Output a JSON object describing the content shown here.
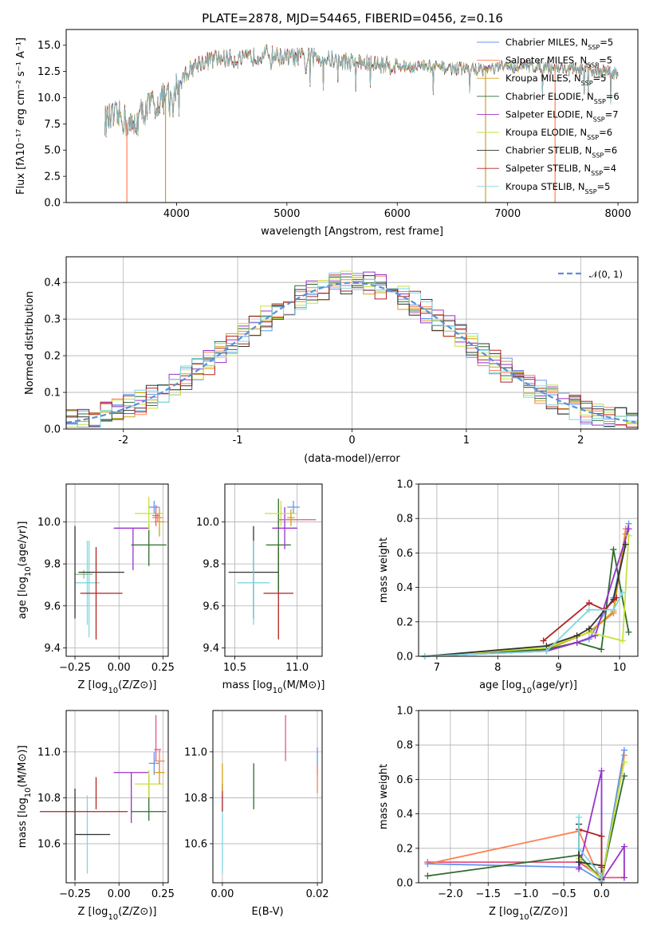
{
  "figure_title": "PLATE=2878, MJD=54465, FIBERID=0456, z=0.16",
  "chart_data": [
    {
      "id": "spectrum",
      "type": "line",
      "title": "PLATE=2878, MJD=54465, FIBERID=0456, z=0.16",
      "xlabel": "wavelength [Angstrom, rest frame]",
      "ylabel": "Flux [fλ10⁻¹⁷ erg cm⁻² s⁻¹ A⁻¹]",
      "xlim": [
        3000,
        8180
      ],
      "ylim": [
        0,
        16.5
      ],
      "xticks": [
        4000,
        5000,
        6000,
        7000,
        8000
      ],
      "yticks": [
        0.0,
        2.5,
        5.0,
        7.5,
        10.0,
        12.5,
        15.0
      ],
      "legend_position": "upper-right",
      "continuum_x": [
        3350,
        3500,
        3600,
        3700,
        3800,
        3900,
        4000,
        4100,
        4200,
        4400,
        4600,
        4800,
        5000,
        5200,
        5500,
        5800,
        6000,
        6200,
        6500,
        6800,
        7000,
        7300,
        7600,
        7900,
        8000
      ],
      "continuum_y": [
        7.8,
        8.2,
        7.0,
        8.8,
        9.5,
        10.0,
        11.0,
        12.5,
        13.3,
        13.8,
        13.6,
        14.2,
        13.8,
        13.9,
        13.5,
        13.2,
        13.0,
        13.0,
        12.8,
        12.7,
        13.0,
        13.0,
        12.7,
        12.5,
        12.3
      ],
      "series": [
        {
          "name": "Chabrier MILES, N$_{SSP}$=5",
          "label": "Chabrier MILES, N",
          "sub": "SSP",
          "suffix": "=5",
          "color": "#6495ed"
        },
        {
          "name": "Salpeter MILES, N$_{SSP}$=5",
          "label": "Salpeter MILES, N",
          "sub": "SSP",
          "suffix": "=5",
          "color": "#ff7f50"
        },
        {
          "name": "Kroupa MILES, N$_{SSP}$=5",
          "label": "Kroupa MILES, N",
          "sub": "SSP",
          "suffix": "=5",
          "color": "#d4a017"
        },
        {
          "name": "Chabrier ELODIE, N$_{SSP}$=6",
          "label": "Chabrier ELODIE, N",
          "sub": "SSP",
          "suffix": "=6",
          "color": "#2e6b2e"
        },
        {
          "name": "Salpeter ELODIE, N$_{SSP}$=7",
          "label": "Salpeter ELODIE, N",
          "sub": "SSP",
          "suffix": "=7",
          "color": "#9932cc"
        },
        {
          "name": "Kroupa ELODIE, N$_{SSP}$=6",
          "label": "Kroupa ELODIE, N",
          "sub": "SSP",
          "suffix": "=6",
          "color": "#c7e23a"
        },
        {
          "name": "Chabrier STELIB, N$_{SSP}$=6",
          "label": "Chabrier STELIB, N",
          "sub": "SSP",
          "suffix": "=6",
          "color": "#333333"
        },
        {
          "name": "Salpeter STELIB, N$_{SSP}$=4",
          "label": "Salpeter STELIB, N",
          "sub": "SSP",
          "suffix": "=4",
          "color": "#b22222"
        },
        {
          "name": "Kroupa STELIB, N$_{SSP}$=5",
          "label": "Kroupa STELIB, N",
          "sub": "SSP",
          "suffix": "=5",
          "color": "#7fd6e0"
        }
      ],
      "line_drops": [
        {
          "x": 3550,
          "color": "#ff7f50"
        },
        {
          "x": 3900,
          "color": "#d4a017"
        },
        {
          "x": 6800,
          "color": "#d4a017"
        },
        {
          "x": 7430,
          "color": "#ff7f50"
        }
      ]
    },
    {
      "id": "residuals",
      "type": "histogram",
      "xlabel": "(data-model)/error",
      "ylabel": "Normed distribution",
      "xlim": [
        -2.5,
        2.5
      ],
      "ylim": [
        0,
        0.47
      ],
      "xticks": [
        -2,
        -1,
        0,
        1,
        2
      ],
      "yticks": [
        0.0,
        0.1,
        0.2,
        0.3,
        0.4
      ],
      "bin_width": 0.1,
      "reference_curve": {
        "name": "N(0,1)",
        "label": "𝒩(0, 1)",
        "mean": 0,
        "sigma": 1,
        "color": "#5b8fd9",
        "style": "dashed"
      },
      "legend_position": "upper-right"
    },
    {
      "id": "age-vs-Z",
      "type": "errorbar",
      "xlabel_main": "Z [log",
      "xlabel_sub": "10",
      "xlabel_tail": "(Z/Z⊙)]",
      "ylabel_main": "age  [log",
      "ylabel_sub": "10",
      "ylabel_tail": "(age/yr)]",
      "xlim": [
        -0.3,
        0.28
      ],
      "ylim": [
        9.36,
        10.18
      ],
      "xticks": [
        -0.25,
        0.0,
        0.25
      ],
      "xticklabels": [
        "−0.25",
        "0.00",
        "0.25"
      ],
      "yticks": [
        9.4,
        9.6,
        9.8,
        10.0
      ],
      "points": [
        {
          "x": -0.18,
          "y": 9.71,
          "xerr": 0.07,
          "yerr": 0.2,
          "color": "#7fd6e0"
        },
        {
          "x": -0.2,
          "y": 9.75,
          "xerr": 0.05,
          "yerr": 0.02,
          "color": "#8fbc8f"
        },
        {
          "x": -0.25,
          "y": 9.76,
          "xerr": 0.0,
          "yerr": 0.22,
          "color": "#333333"
        },
        {
          "x": -0.17,
          "y": 9.68,
          "xerr": 0.0,
          "yerr": 0.23,
          "color": "#7fd6e0"
        },
        {
          "x": -0.1,
          "y": 9.76,
          "xerr": 0.13,
          "yerr": 0.0,
          "color": "#333333"
        },
        {
          "x": -0.1,
          "y": 9.66,
          "xerr": 0.12,
          "yerr": 0.0,
          "color": "#b22222"
        },
        {
          "x": -0.13,
          "y": 9.66,
          "xerr": 0.0,
          "yerr": 0.22,
          "color": "#b22222"
        },
        {
          "x": 0.07,
          "y": 9.97,
          "xerr": 0.1,
          "yerr": 0.0,
          "color": "#9932cc"
        },
        {
          "x": 0.08,
          "y": 9.87,
          "xerr": 0.0,
          "yerr": 0.1,
          "color": "#9932cc"
        },
        {
          "x": 0.17,
          "y": 9.89,
          "xerr": 0.1,
          "yerr": 0.0,
          "color": "#2e6b2e"
        },
        {
          "x": 0.17,
          "y": 9.89,
          "xerr": 0.0,
          "yerr": 0.1,
          "color": "#2e6b2e"
        },
        {
          "x": 0.17,
          "y": 10.04,
          "xerr": 0.08,
          "yerr": 0.08,
          "color": "#c7e23a"
        },
        {
          "x": 0.2,
          "y": 10.07,
          "xerr": 0.03,
          "yerr": 0.03,
          "color": "#6495ed"
        },
        {
          "x": 0.22,
          "y": 10.02,
          "xerr": 0.03,
          "yerr": 0.02,
          "color": "#ff7f50"
        },
        {
          "x": 0.23,
          "y": 10.0,
          "xerr": 0.03,
          "yerr": 0.07,
          "color": "#d4a017"
        },
        {
          "x": 0.21,
          "y": 10.03,
          "xerr": 0.02,
          "yerr": 0.05,
          "color": "#e75480"
        }
      ]
    },
    {
      "id": "age-vs-mass",
      "type": "errorbar",
      "xlabel_main": "mass [log",
      "xlabel_sub": "10",
      "xlabel_tail": "(M/M⊙)]",
      "xlim": [
        10.42,
        11.2
      ],
      "ylim": [
        9.36,
        10.18
      ],
      "xticks": [
        10.5,
        11.0
      ],
      "xticklabels": [
        "10.5",
        "11.0"
      ],
      "yticks": [
        9.4,
        9.6,
        9.8,
        10.0
      ],
      "points": [
        {
          "x": 10.65,
          "y": 9.76,
          "xerr": 0.2,
          "yerr": 0.22,
          "color": "#333333"
        },
        {
          "x": 10.65,
          "y": 9.71,
          "xerr": 0.13,
          "yerr": 0.2,
          "color": "#7fd6e0"
        },
        {
          "x": 10.85,
          "y": 9.66,
          "xerr": 0.12,
          "yerr": 0.22,
          "color": "#b22222"
        },
        {
          "x": 10.85,
          "y": 9.89,
          "xerr": 0.1,
          "yerr": 0.22,
          "color": "#2e6b2e"
        },
        {
          "x": 10.9,
          "y": 9.97,
          "xerr": 0.1,
          "yerr": 0.1,
          "color": "#9932cc"
        },
        {
          "x": 10.87,
          "y": 10.04,
          "xerr": 0.13,
          "yerr": 0.06,
          "color": "#c7e23a"
        },
        {
          "x": 10.97,
          "y": 10.07,
          "xerr": 0.05,
          "yerr": 0.03,
          "color": "#6495ed"
        },
        {
          "x": 11.0,
          "y": 10.01,
          "xerr": 0.15,
          "yerr": 0.0,
          "color": "#e75480"
        },
        {
          "x": 10.95,
          "y": 10.02,
          "xerr": 0.03,
          "yerr": 0.04,
          "color": "#d4a017"
        }
      ]
    },
    {
      "id": "weight-vs-age",
      "type": "line",
      "xlabel_main": "age  [log",
      "xlabel_sub": "10",
      "xlabel_tail": "(age/yr)]",
      "ylabel": "mass weight",
      "xlim": [
        6.7,
        10.3
      ],
      "ylim": [
        0,
        1.0
      ],
      "xticks": [
        7,
        8,
        9,
        10
      ],
      "yticks": [
        0.0,
        0.2,
        0.4,
        0.6,
        0.8,
        1.0
      ],
      "series": [
        {
          "color": "#6495ed",
          "x": [
            6.8,
            8.8,
            9.5,
            9.9,
            10.15
          ],
          "y": [
            0.0,
            0.03,
            0.1,
            0.34,
            0.77
          ]
        },
        {
          "color": "#ff7f50",
          "x": [
            6.8,
            8.8,
            9.5,
            9.9,
            10.1
          ],
          "y": [
            0.0,
            0.04,
            0.14,
            0.25,
            0.74
          ]
        },
        {
          "color": "#d4a017",
          "x": [
            6.8,
            8.8,
            9.5,
            9.9,
            10.1
          ],
          "y": [
            0.0,
            0.04,
            0.14,
            0.26,
            0.71
          ]
        },
        {
          "color": "#2e6b2e",
          "x": [
            6.8,
            8.8,
            9.3,
            9.7,
            9.9,
            10.15
          ],
          "y": [
            0.0,
            0.04,
            0.08,
            0.04,
            0.62,
            0.14
          ]
        },
        {
          "color": "#9932cc",
          "x": [
            6.8,
            8.8,
            9.3,
            9.6,
            10.15
          ],
          "y": [
            0.0,
            0.03,
            0.08,
            0.12,
            0.74
          ]
        },
        {
          "color": "#c7e23a",
          "x": [
            6.8,
            8.8,
            9.5,
            10.05,
            10.15
          ],
          "y": [
            0.0,
            0.05,
            0.14,
            0.09,
            0.7
          ]
        },
        {
          "color": "#333333",
          "x": [
            6.8,
            8.8,
            9.3,
            9.5,
            9.9,
            10.1
          ],
          "y": [
            0.0,
            0.06,
            0.12,
            0.16,
            0.33,
            0.65
          ]
        },
        {
          "color": "#b22222",
          "x": [
            8.75,
            9.5,
            9.75,
            9.95
          ],
          "y": [
            0.09,
            0.31,
            0.27,
            0.34
          ]
        },
        {
          "color": "#7fd6e0",
          "x": [
            6.8,
            8.8,
            9.5,
            9.9,
            10.05
          ],
          "y": [
            0.0,
            0.03,
            0.27,
            0.27,
            0.37
          ]
        }
      ]
    },
    {
      "id": "mass-vs-Z",
      "type": "errorbar",
      "xlabel_main": "Z [log",
      "xlabel_sub": "10",
      "xlabel_tail": "(Z/Z⊙)]",
      "ylabel_main": "mass [log",
      "ylabel_sub": "10",
      "ylabel_tail": "(M/M⊙)]",
      "xlim": [
        -0.3,
        0.28
      ],
      "ylim": [
        10.43,
        11.18
      ],
      "xticks": [
        -0.25,
        0.0,
        0.25
      ],
      "xticklabels": [
        "−0.25",
        "0.00",
        "0.25"
      ],
      "yticks": [
        10.6,
        10.8,
        11.0
      ],
      "points": [
        {
          "x": -0.25,
          "y": 10.64,
          "xerr": 0.0,
          "yerr": 0.2,
          "color": "#333333"
        },
        {
          "x": -0.18,
          "y": 10.64,
          "xerr": 0.07,
          "yerr": 0.17,
          "color": "#7fd6e0"
        },
        {
          "x": -0.15,
          "y": 10.64,
          "xerr": 0.1,
          "yerr": 0.0,
          "color": "#333333"
        },
        {
          "x": -0.2,
          "y": 10.74,
          "xerr": 0.25,
          "yerr": 0.0,
          "color": "#b22222"
        },
        {
          "x": -0.13,
          "y": 10.82,
          "xerr": 0.0,
          "yerr": 0.07,
          "color": "#b22222"
        },
        {
          "x": 0.07,
          "y": 10.91,
          "xerr": 0.1,
          "yerr": 0.0,
          "color": "#9932cc"
        },
        {
          "x": 0.07,
          "y": 10.8,
          "xerr": 0.0,
          "yerr": 0.11,
          "color": "#9932cc"
        },
        {
          "x": 0.17,
          "y": 10.74,
          "xerr": 0.1,
          "yerr": 0.0,
          "color": "#2e6b2e"
        },
        {
          "x": 0.17,
          "y": 10.8,
          "xerr": 0.0,
          "yerr": 0.1,
          "color": "#2e6b2e"
        },
        {
          "x": 0.17,
          "y": 10.86,
          "xerr": 0.08,
          "yerr": 0.06,
          "color": "#c7e23a"
        },
        {
          "x": 0.2,
          "y": 10.95,
          "xerr": 0.03,
          "yerr": 0.05,
          "color": "#6495ed"
        },
        {
          "x": 0.22,
          "y": 11.01,
          "xerr": 0.02,
          "yerr": 0.0,
          "color": "#e75480"
        },
        {
          "x": 0.21,
          "y": 11.06,
          "xerr": 0.0,
          "yerr": 0.1,
          "color": "#e75480"
        },
        {
          "x": 0.23,
          "y": 10.91,
          "xerr": 0.03,
          "yerr": 0.05,
          "color": "#d4a017"
        },
        {
          "x": 0.23,
          "y": 10.96,
          "xerr": 0.03,
          "yerr": 0.05,
          "color": "#ff7f50"
        }
      ]
    },
    {
      "id": "mass-vs-ebv",
      "type": "errorbar",
      "xlabel": "E(B-V)",
      "xlim": [
        -0.002,
        0.021
      ],
      "ylim": [
        10.43,
        11.18
      ],
      "xticks": [
        0.0,
        0.02
      ],
      "xticklabels": [
        "0.00",
        "0.02"
      ],
      "yticks": [
        10.6,
        10.8,
        11.0
      ],
      "points": [
        {
          "x": 0.0,
          "y": 10.64,
          "xerr": 0.0,
          "yerr": 0.17,
          "color": "#7fd6e0"
        },
        {
          "x": 0.0,
          "y": 10.8,
          "xerr": 0.0,
          "yerr": 0.06,
          "color": "#b22222"
        },
        {
          "x": 0.0,
          "y": 10.89,
          "xerr": 0.0,
          "yerr": 0.06,
          "color": "#d4a017"
        },
        {
          "x": 0.0066,
          "y": 10.85,
          "xerr": 0.0,
          "yerr": 0.1,
          "color": "#2e6b2e"
        },
        {
          "x": 0.0133,
          "y": 11.06,
          "xerr": 0.0,
          "yerr": 0.1,
          "color": "#e75480"
        },
        {
          "x": 0.02,
          "y": 10.96,
          "xerr": 0.0,
          "yerr": 0.06,
          "color": "#6495ed"
        },
        {
          "x": 0.02,
          "y": 10.88,
          "xerr": 0.0,
          "yerr": 0.06,
          "color": "#ff7f50"
        }
      ]
    },
    {
      "id": "weight-vs-Z",
      "type": "line",
      "xlabel_main": "Z [log",
      "xlabel_sub": "10",
      "xlabel_tail": "(Z/Z⊙)]",
      "ylabel": "mass weight",
      "xlim": [
        -2.42,
        0.48
      ],
      "ylim": [
        0,
        1.0
      ],
      "xticks": [
        -2.0,
        -1.5,
        -1.0,
        -0.5,
        0.0
      ],
      "xticklabels": [
        "−2.0",
        "−1.5",
        "−1.0",
        "−0.5",
        "0.0"
      ],
      "yticks": [
        0.0,
        0.2,
        0.4,
        0.6,
        0.8,
        1.0
      ],
      "series": [
        {
          "color": "#e75480",
          "x": [
            -2.3,
            -0.3,
            0.0,
            0.3
          ],
          "y": [
            0.12,
            0.12,
            0.03,
            0.03
          ]
        },
        {
          "color": "#ff7f50",
          "x": [
            -2.3,
            -0.3,
            0.0,
            0.3
          ],
          "y": [
            0.11,
            0.3,
            0.0,
            0.74
          ]
        },
        {
          "color": "#6495ed",
          "x": [
            -2.3,
            -0.3,
            0.0,
            0.3
          ],
          "y": [
            0.11,
            0.09,
            0.01,
            0.77
          ]
        },
        {
          "color": "#2e6b2e",
          "x": [
            -2.3,
            -0.3,
            0.0,
            0.3
          ],
          "y": [
            0.04,
            0.16,
            0.02,
            0.62
          ]
        },
        {
          "color": "#9932cc",
          "x": [
            -0.3,
            -0.3,
            0.0,
            0.0,
            0.3,
            0.3
          ],
          "y": [
            0.12,
            0.08,
            0.65,
            0.01,
            0.21,
            0.03
          ]
        },
        {
          "color": "#c7e23a",
          "x": [
            -0.3,
            0.0,
            0.3
          ],
          "y": [
            0.14,
            0.02,
            0.7
          ]
        },
        {
          "color": "#333333",
          "x": [
            -0.3,
            -0.3,
            0.0,
            0.0
          ],
          "y": [
            0.34,
            0.12,
            0.1,
            0.02
          ]
        },
        {
          "color": "#b22222",
          "x": [
            -0.3,
            0.0,
            0.0
          ],
          "y": [
            0.31,
            0.27,
            0.09
          ]
        },
        {
          "color": "#7fd6e0",
          "x": [
            -0.3,
            -0.3,
            0.0,
            0.0
          ],
          "y": [
            0.38,
            0.2,
            0.04,
            0.01
          ]
        }
      ]
    }
  ]
}
